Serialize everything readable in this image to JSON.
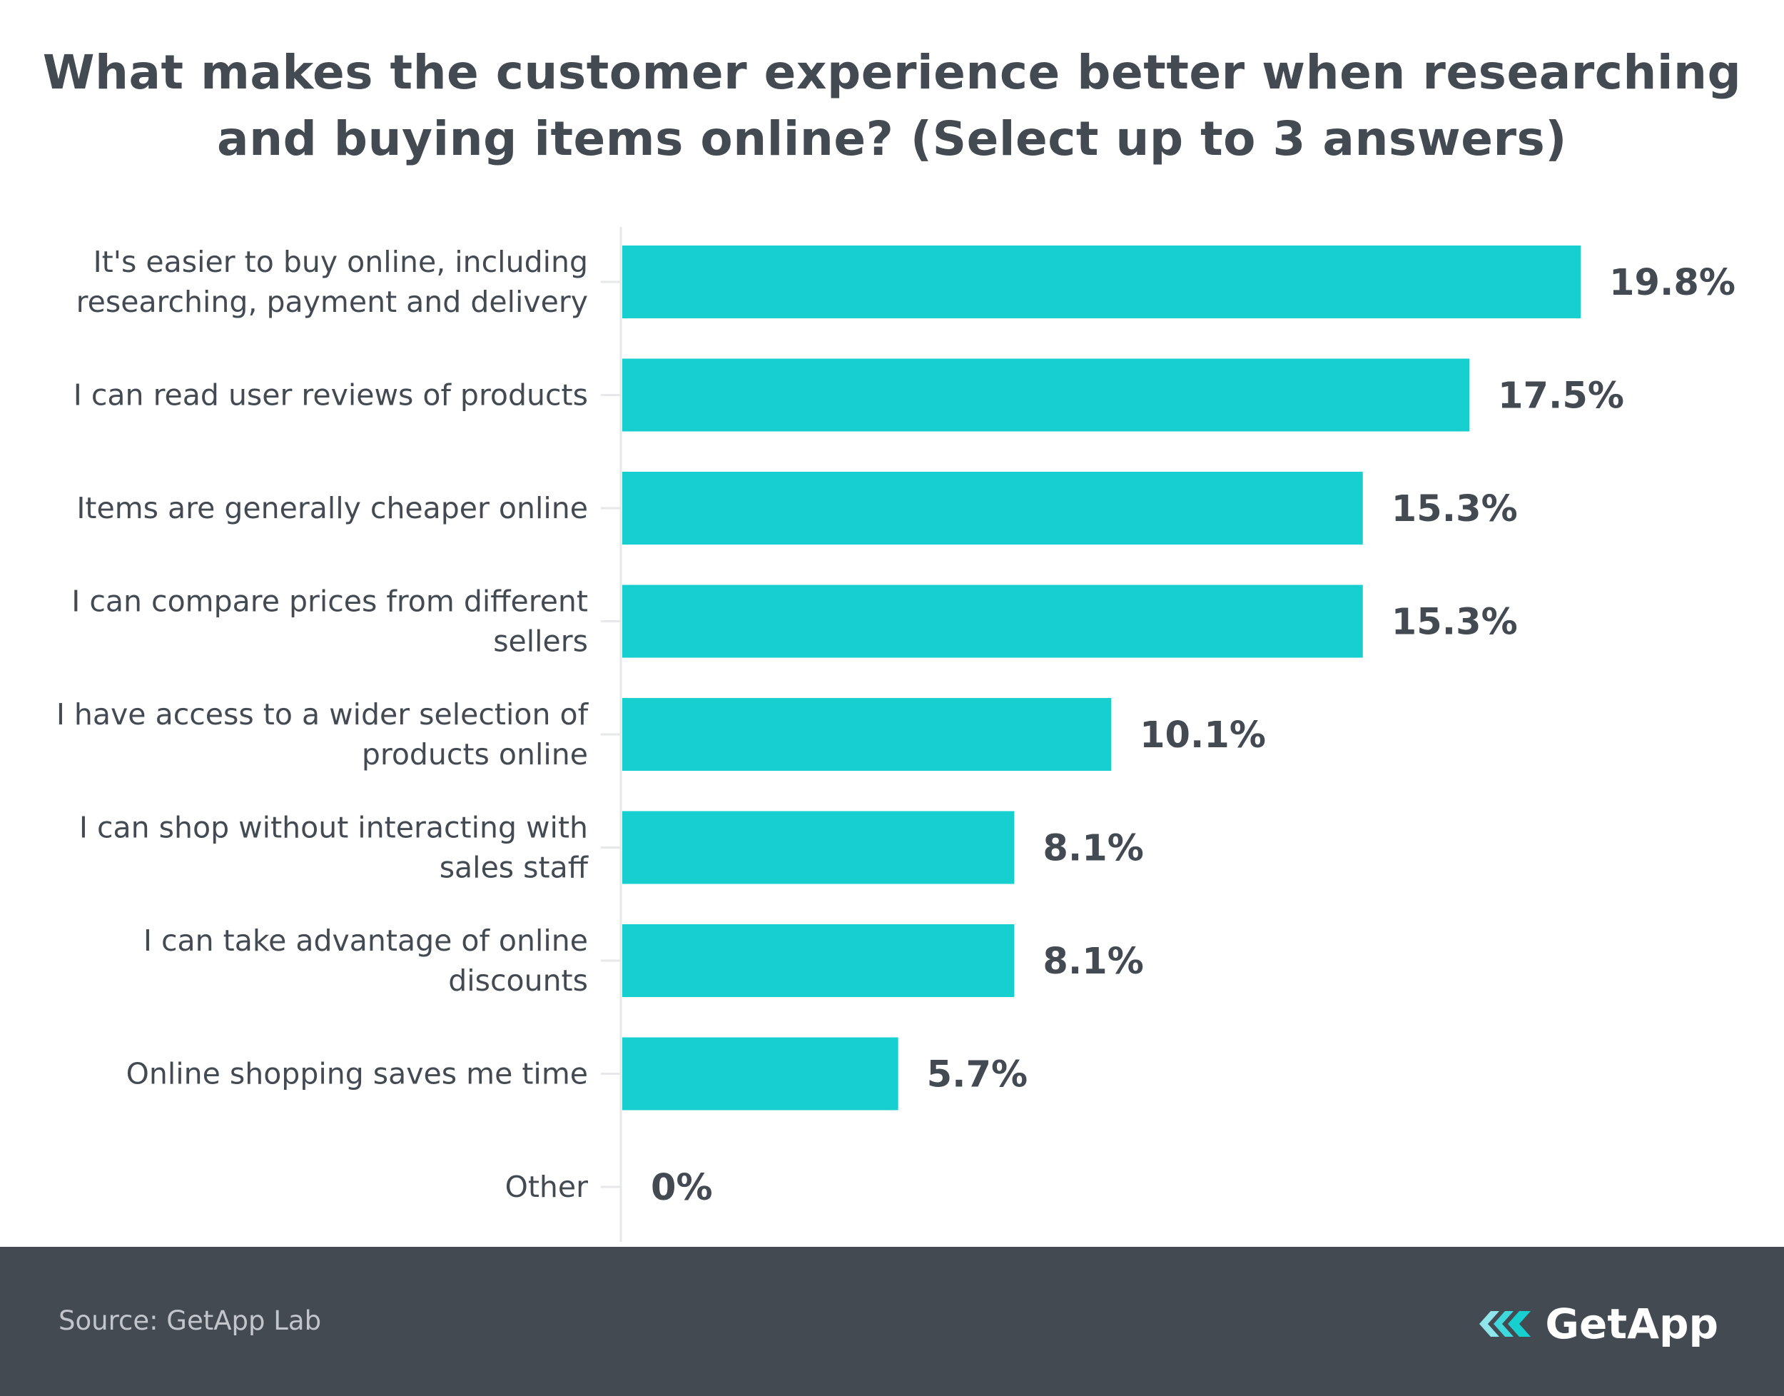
{
  "title": {
    "line1": "What makes the customer experience better when researching",
    "line2": "and buying items online? (Select up to 3 answers)"
  },
  "chart_data": {
    "type": "bar",
    "orientation": "horizontal",
    "title": "What makes the customer experience better when researching and buying items online? (Select up to 3 answers)",
    "categories": [
      [
        "It's easier to buy online, including",
        "researching, payment and delivery"
      ],
      [
        "I can read user reviews of products"
      ],
      [
        "Items are generally cheaper online"
      ],
      [
        "I can compare prices from different",
        "sellers"
      ],
      [
        "I have access to a wider selection of",
        "products online"
      ],
      [
        "I can shop without interacting with",
        "sales staff"
      ],
      [
        "I can take advantage of online",
        "discounts"
      ],
      [
        "Online shopping saves me time"
      ],
      [
        "Other"
      ]
    ],
    "values": [
      19.8,
      17.5,
      15.3,
      15.3,
      10.1,
      8.1,
      8.1,
      5.7,
      0
    ],
    "value_labels": [
      "19.8%",
      "17.5%",
      "15.3%",
      "15.3%",
      "10.1%",
      "8.1%",
      "8.1%",
      "5.7%",
      "0%"
    ],
    "xlim": [
      0,
      19.8
    ],
    "bar_color": "#17cfcf",
    "text_color": "#434a52",
    "xlabel": "",
    "ylabel": "",
    "grid": false
  },
  "footer": {
    "source": "Source: GetApp Lab",
    "brand": "GetApp",
    "background": "#434a52"
  },
  "icons": {
    "brand_logo": "getapp-chevrons-icon"
  }
}
